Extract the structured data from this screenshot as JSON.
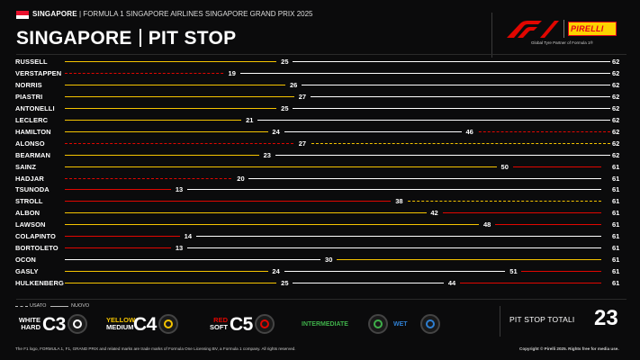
{
  "header": {
    "country_small": "SINGAPORE",
    "event_line": "| FORMULA 1 SINGAPORE AIRLINES SINGAPORE GRAND PRIX 2025",
    "title_left": "SINGAPORE",
    "title_right": "PIT STOP",
    "partner_text": "Global Tyre Partner of Formula 1®",
    "pirelli_logo": "PIRELLI",
    "flag_colors": [
      "#e8112d",
      "#ffffff"
    ]
  },
  "colors": {
    "hard": "#ffffff",
    "medium": "#f5c400",
    "soft": "#e10600",
    "intermediate": "#3fb04a",
    "wet": "#2f7fd1",
    "background": "#0b0b0c"
  },
  "race": {
    "total_laps": 62
  },
  "drivers": [
    {
      "name": "RUSSELL",
      "end": "62",
      "stints": [
        {
          "c": "medium",
          "s": "solid",
          "to": 25
        },
        {
          "c": "hard",
          "s": "solid",
          "to": 62
        }
      ],
      "pits": [
        25
      ]
    },
    {
      "name": "VERSTAPPEN",
      "end": "62",
      "stints": [
        {
          "c": "soft",
          "s": "dashed",
          "to": 19
        },
        {
          "c": "hard",
          "s": "solid",
          "to": 62
        }
      ],
      "pits": [
        19
      ]
    },
    {
      "name": "NORRIS",
      "end": "62",
      "stints": [
        {
          "c": "medium",
          "s": "solid",
          "to": 26
        },
        {
          "c": "hard",
          "s": "solid",
          "to": 62
        }
      ],
      "pits": [
        26
      ]
    },
    {
      "name": "PIASTRI",
      "end": "62",
      "stints": [
        {
          "c": "medium",
          "s": "solid",
          "to": 27
        },
        {
          "c": "hard",
          "s": "solid",
          "to": 62
        }
      ],
      "pits": [
        27
      ]
    },
    {
      "name": "ANTONELLI",
      "end": "62",
      "stints": [
        {
          "c": "medium",
          "s": "solid",
          "to": 25
        },
        {
          "c": "hard",
          "s": "solid",
          "to": 62
        }
      ],
      "pits": [
        25
      ]
    },
    {
      "name": "LECLERC",
      "end": "62",
      "stints": [
        {
          "c": "medium",
          "s": "solid",
          "to": 21
        },
        {
          "c": "hard",
          "s": "solid",
          "to": 62
        }
      ],
      "pits": [
        21
      ]
    },
    {
      "name": "HAMILTON",
      "end": "62",
      "stints": [
        {
          "c": "medium",
          "s": "solid",
          "to": 24
        },
        {
          "c": "hard",
          "s": "solid",
          "to": 46
        },
        {
          "c": "soft",
          "s": "dashed",
          "to": 62
        }
      ],
      "pits": [
        24,
        46
      ]
    },
    {
      "name": "ALONSO",
      "end": "62",
      "stints": [
        {
          "c": "soft",
          "s": "dashed",
          "to": 27
        },
        {
          "c": "medium",
          "s": "dashed",
          "to": 62
        }
      ],
      "pits": [
        27
      ]
    },
    {
      "name": "BEARMAN",
      "end": "62",
      "stints": [
        {
          "c": "medium",
          "s": "solid",
          "to": 23
        },
        {
          "c": "hard",
          "s": "solid",
          "to": 62
        }
      ],
      "pits": [
        23
      ]
    },
    {
      "name": "SAINZ",
      "end": "61",
      "stints": [
        {
          "c": "medium",
          "s": "solid",
          "to": 50
        },
        {
          "c": "soft",
          "s": "solid",
          "to": 61
        }
      ],
      "pits": [
        50
      ]
    },
    {
      "name": "HADJAR",
      "end": "61",
      "stints": [
        {
          "c": "soft",
          "s": "dashed",
          "to": 20
        },
        {
          "c": "hard",
          "s": "solid",
          "to": 61
        }
      ],
      "pits": [
        20
      ]
    },
    {
      "name": "TSUNODA",
      "end": "61",
      "stints": [
        {
          "c": "soft",
          "s": "solid",
          "to": 13
        },
        {
          "c": "hard",
          "s": "solid",
          "to": 61
        }
      ],
      "pits": [
        13
      ]
    },
    {
      "name": "STROLL",
      "end": "61",
      "stints": [
        {
          "c": "soft",
          "s": "solid",
          "to": 38
        },
        {
          "c": "medium",
          "s": "dashed",
          "to": 61
        }
      ],
      "pits": [
        38
      ]
    },
    {
      "name": "ALBON",
      "end": "61",
      "stints": [
        {
          "c": "medium",
          "s": "solid",
          "to": 42
        },
        {
          "c": "soft",
          "s": "solid",
          "to": 61
        }
      ],
      "pits": [
        42
      ]
    },
    {
      "name": "LAWSON",
      "end": "61",
      "stints": [
        {
          "c": "medium",
          "s": "solid",
          "to": 48
        },
        {
          "c": "soft",
          "s": "solid",
          "to": 61
        }
      ],
      "pits": [
        48
      ]
    },
    {
      "name": "COLAPINTO",
      "end": "61",
      "stints": [
        {
          "c": "soft",
          "s": "solid",
          "to": 14
        },
        {
          "c": "hard",
          "s": "solid",
          "to": 61
        }
      ],
      "pits": [
        14
      ]
    },
    {
      "name": "BORTOLETO",
      "end": "61",
      "stints": [
        {
          "c": "soft",
          "s": "solid",
          "to": 13
        },
        {
          "c": "hard",
          "s": "solid",
          "to": 61
        }
      ],
      "pits": [
        13
      ]
    },
    {
      "name": "OCON",
      "end": "61",
      "stints": [
        {
          "c": "hard",
          "s": "solid",
          "to": 30
        },
        {
          "c": "medium",
          "s": "solid",
          "to": 61
        }
      ],
      "pits": [
        30
      ]
    },
    {
      "name": "GASLY",
      "end": "61",
      "stints": [
        {
          "c": "medium",
          "s": "solid",
          "to": 24
        },
        {
          "c": "hard",
          "s": "solid",
          "to": 51
        },
        {
          "c": "soft",
          "s": "solid",
          "to": 61
        }
      ],
      "pits": [
        24,
        51
      ]
    },
    {
      "name": "HULKENBERG",
      "end": "61",
      "stints": [
        {
          "c": "medium",
          "s": "solid",
          "to": 25
        },
        {
          "c": "hard",
          "s": "solid",
          "to": 44
        },
        {
          "c": "soft",
          "s": "solid",
          "to": 61
        }
      ],
      "pits": [
        25,
        44
      ]
    }
  ],
  "legend": {
    "used_label": "USATO",
    "new_label": "NUOVO",
    "tyres": [
      {
        "line1": "WHITE",
        "line2": "HARD",
        "code": "C3",
        "color": "#ffffff",
        "icon": "hard-tyre-icon"
      },
      {
        "line1": "YELLOW",
        "line2": "MEDIUM",
        "code": "C4",
        "color": "#f5c400",
        "icon": "medium-tyre-icon"
      },
      {
        "line1": "RED",
        "line2": "SOFT",
        "code": "C5",
        "color": "#e10600",
        "icon": "soft-tyre-icon"
      },
      {
        "line1": "INTERMEDIATE",
        "line2": "",
        "code": "",
        "color": "#3fb04a",
        "icon": "intermediate-tyre-icon"
      },
      {
        "line1": "WET",
        "line2": "",
        "code": "",
        "color": "#2f7fd1",
        "icon": "wet-tyre-icon"
      }
    ]
  },
  "totals": {
    "label": "PIT STOP TOTALI",
    "value": "23"
  },
  "footer": {
    "left": "The F1 logo, FORMULA 1, F1, GRAND PRIX and related marks are trade marks of Formula One Licensing BV, a Formula 1 company. All rights reserved.",
    "right": "Copyright © Pirelli 2025. Rights free for media use."
  }
}
